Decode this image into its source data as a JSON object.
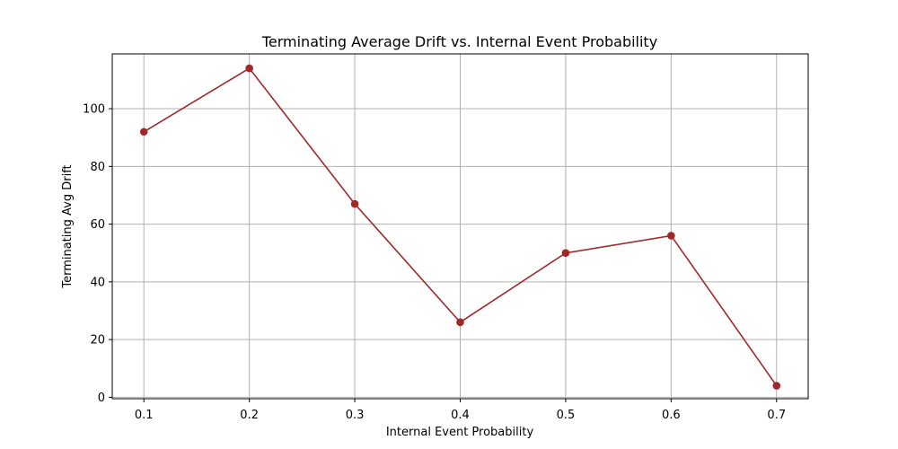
{
  "chart_data": {
    "type": "line",
    "title": "Terminating Average Drift vs. Internal Event Probability",
    "xlabel": "Internal Event Probability",
    "ylabel": "Terminating Avg Drift",
    "x": [
      0.1,
      0.2,
      0.3,
      0.4,
      0.5,
      0.6,
      0.7
    ],
    "x_tick_labels": [
      "0.1",
      "0.2",
      "0.3",
      "0.4",
      "0.5",
      "0.6",
      "0.7"
    ],
    "y_ticks": [
      0,
      20,
      40,
      60,
      80,
      100
    ],
    "y_tick_labels": [
      "0",
      "20",
      "40",
      "60",
      "80",
      "100"
    ],
    "xlim": [
      0.07,
      0.73
    ],
    "ylim": [
      -0.5,
      119
    ],
    "grid": true,
    "series": [
      {
        "values": [
          92,
          114,
          67,
          26,
          50,
          56,
          4
        ],
        "color": "#a02828",
        "marker": "circle"
      }
    ],
    "colors": {
      "grid": "#b0b0b0",
      "axes": "#000000",
      "background": "#ffffff"
    }
  }
}
